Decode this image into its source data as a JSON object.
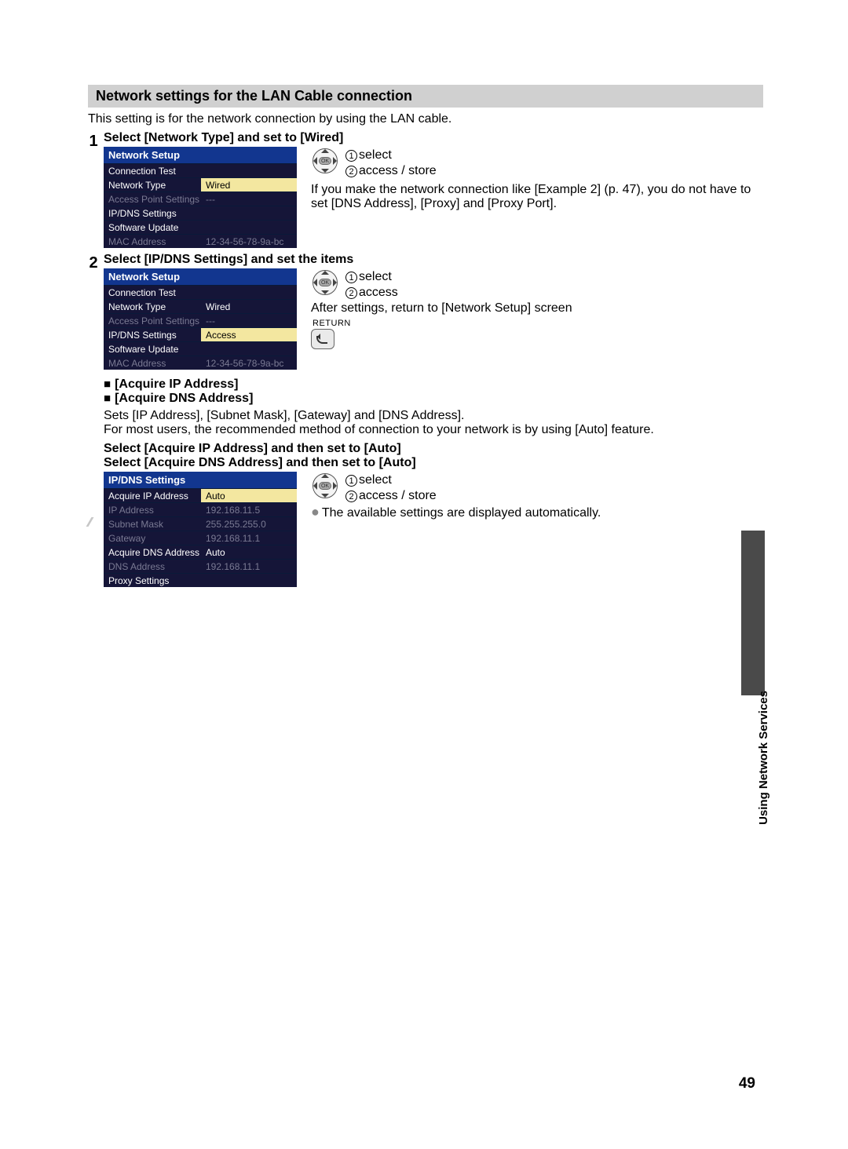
{
  "section_title": "Network settings for the LAN Cable connection",
  "intro": "This setting is for the network connection by using the LAN cable.",
  "side_label": "Using Network Services",
  "page_number": "49",
  "step1": {
    "num": "1",
    "head": "Select [Network Type] and set to [Wired]",
    "menu": {
      "title": "Network Setup",
      "rows": [
        {
          "label": "Connection Test",
          "val": "",
          "cls": "white"
        },
        {
          "label": "Network Type",
          "val": "Wired",
          "cls": "hl"
        },
        {
          "label": "Access Point Settings",
          "val": "---",
          "cls": "grey"
        },
        {
          "label": "IP/DNS Settings",
          "val": "",
          "cls": "white"
        },
        {
          "label": "Software Update",
          "val": "",
          "cls": "white"
        },
        {
          "label": "MAC Address",
          "val": "12-34-56-78-9a-bc",
          "cls": "grey"
        }
      ]
    },
    "r1_num": "1",
    "r1": "select",
    "r2_num": "2",
    "r2": "access / store",
    "note": "If you make the network connection like [Example 2] (p. 47), you do not have to set [DNS Address], [Proxy] and [Proxy Port]."
  },
  "step2": {
    "num": "2",
    "head": "Select [IP/DNS Settings] and set the items",
    "menu": {
      "title": "Network Setup",
      "rows": [
        {
          "label": "Connection Test",
          "val": "",
          "cls": "white"
        },
        {
          "label": "Network Type",
          "val": "Wired",
          "cls": "white"
        },
        {
          "label": "Access Point Settings",
          "val": "---",
          "cls": "grey"
        },
        {
          "label": "IP/DNS Settings",
          "val": "Access",
          "cls": "hl"
        },
        {
          "label": "Software Update",
          "val": "",
          "cls": "white"
        },
        {
          "label": "MAC Address",
          "val": "12-34-56-78-9a-bc",
          "cls": "grey"
        }
      ]
    },
    "r1_num": "1",
    "r1": "select",
    "r2_num": "2",
    "r2": "access",
    "after": "After settings, return to [Network Setup] screen",
    "return": "RETURN"
  },
  "acquire": {
    "h1": "[Acquire IP Address]",
    "h2": "[Acquire DNS Address]",
    "body1": "Sets [IP Address], [Subnet Mask], [Gateway] and [DNS Address].",
    "body2": "For most users, the recommended method of connection to your network is by using [Auto] feature.",
    "h3": "Select [Acquire IP Address] and then set to [Auto]",
    "h4": "Select [Acquire DNS Address] and then set to [Auto]",
    "menu": {
      "title": "IP/DNS Settings",
      "rows": [
        {
          "label": "Acquire IP Address",
          "val": "Auto",
          "cls": "hl"
        },
        {
          "label": "IP Address",
          "val": "192.168.11.5",
          "cls": "grey"
        },
        {
          "label": "Subnet Mask",
          "val": "255.255.255.0",
          "cls": "grey"
        },
        {
          "label": "Gateway",
          "val": "192.168.11.1",
          "cls": "grey"
        },
        {
          "label": "Acquire DNS Address",
          "val": "Auto",
          "cls": "white"
        },
        {
          "label": "DNS Address",
          "val": "192.168.11.1",
          "cls": "grey"
        },
        {
          "label": "Proxy Settings",
          "val": "",
          "cls": "white"
        }
      ]
    },
    "r1_num": "1",
    "r1": "select",
    "r2_num": "2",
    "r2": "access / store",
    "note": "The available settings are displayed automatically."
  }
}
